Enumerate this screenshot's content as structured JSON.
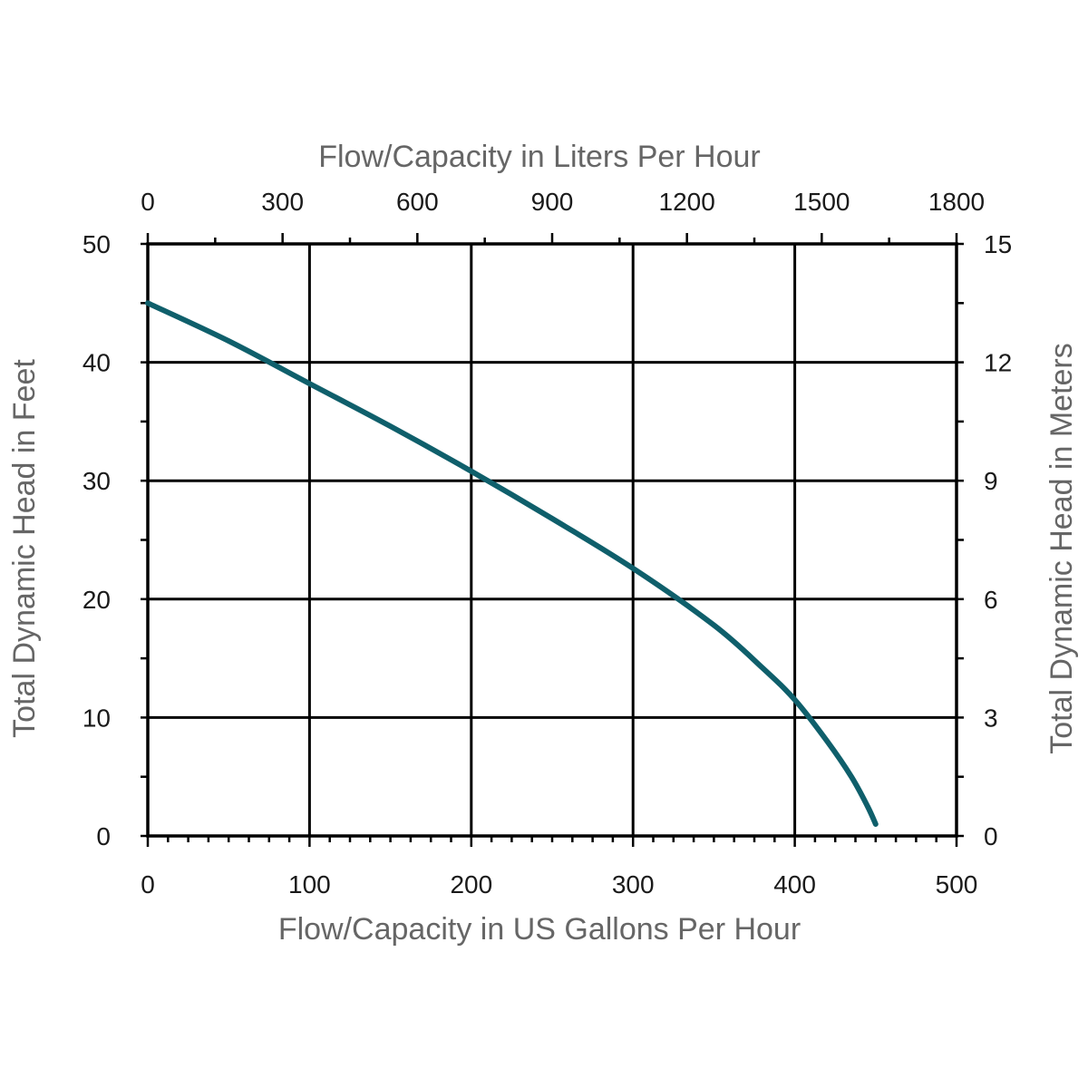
{
  "chart_data": {
    "type": "line",
    "title": "",
    "xlabel": "Flow/Capacity in US Gallons Per Hour",
    "x2label": "Flow/Capacity in Liters Per Hour",
    "ylabel": "Total Dynamic Head in Feet",
    "y2label": "Total Dynamic Head in Meters",
    "xlim": [
      0,
      500
    ],
    "ylim": [
      0,
      50
    ],
    "x2lim": [
      0,
      1800
    ],
    "y2lim": [
      0,
      15
    ],
    "x_ticks": [
      "0",
      "100",
      "200",
      "300",
      "400",
      "500"
    ],
    "y_ticks": [
      "0",
      "10",
      "20",
      "30",
      "40",
      "50"
    ],
    "x2_ticks": [
      "0",
      "300",
      "600",
      "900",
      "1200",
      "1500",
      "1800"
    ],
    "y2_ticks": [
      "0",
      "3",
      "6",
      "9",
      "12",
      "15"
    ],
    "grid": true,
    "legend": "none",
    "colors": {
      "line": "#0f5f6b",
      "axis_text": "#666666"
    },
    "series": [
      {
        "x": [
          0,
          50,
          100,
          150,
          200,
          250,
          300,
          350,
          380,
          400,
          420,
          435,
          445,
          450
        ],
        "values": [
          45,
          41.8,
          38.2,
          34.6,
          30.8,
          26.8,
          22.6,
          17.8,
          14.2,
          11.5,
          8,
          5,
          2.5,
          1
        ]
      }
    ]
  }
}
